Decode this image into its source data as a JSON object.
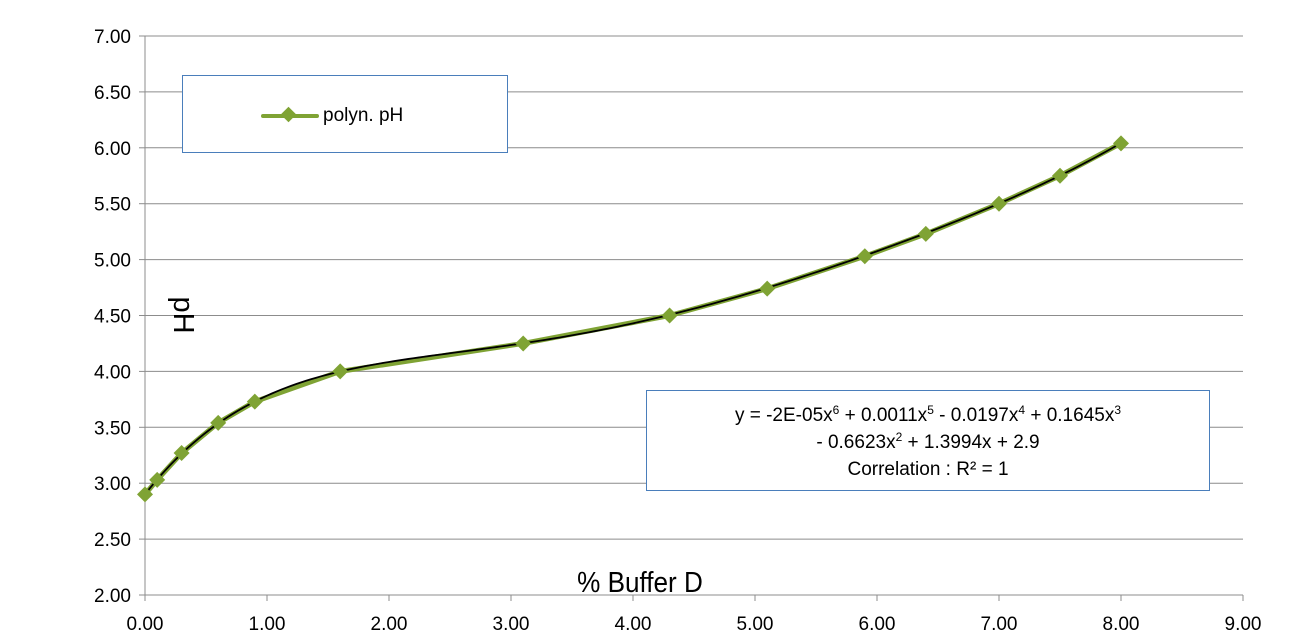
{
  "chart_data": {
    "type": "scatter",
    "title": "",
    "xlabel": "% Buffer D",
    "ylabel": "pH",
    "xlim": [
      0,
      9
    ],
    "ylim": [
      2,
      7
    ],
    "x_ticks": [
      "0.00",
      "1.00",
      "2.00",
      "3.00",
      "4.00",
      "5.00",
      "6.00",
      "7.00",
      "8.00",
      "9.00"
    ],
    "y_ticks": [
      "2.00",
      "2.50",
      "3.00",
      "3.50",
      "4.00",
      "4.50",
      "5.00",
      "5.50",
      "6.00",
      "6.50",
      "7.00"
    ],
    "grid": "horizontal",
    "legend_position": "top-left",
    "series": [
      {
        "name": "polyn. pH",
        "color": "#7fa334",
        "marker": "diamond",
        "x": [
          0.0,
          0.1,
          0.3,
          0.6,
          0.9,
          1.6,
          3.1,
          4.3,
          5.1,
          5.9,
          6.4,
          7.0,
          7.5,
          8.0
        ],
        "y": [
          2.9,
          3.03,
          3.27,
          3.54,
          3.73,
          4.0,
          4.25,
          4.5,
          4.74,
          5.03,
          5.23,
          5.5,
          5.75,
          6.04
        ]
      }
    ],
    "trendline": {
      "type": "polynomial",
      "order": 6,
      "color": "#000000",
      "coefficients": [
        2.9,
        1.3994,
        -0.6623,
        0.1645,
        -0.0197,
        0.0011,
        -2e-05
      ]
    },
    "annotation": {
      "line1_parts": [
        "y = -2E-05x",
        "6",
        " + 0.0011x",
        "5",
        " - 0.0197x",
        "4",
        " + 0.1645x",
        "3"
      ],
      "line2_parts": [
        "- 0.6623x",
        "2",
        " + 1.3994x + 2.9"
      ],
      "line3": "Correlation :  R² = 1"
    }
  }
}
